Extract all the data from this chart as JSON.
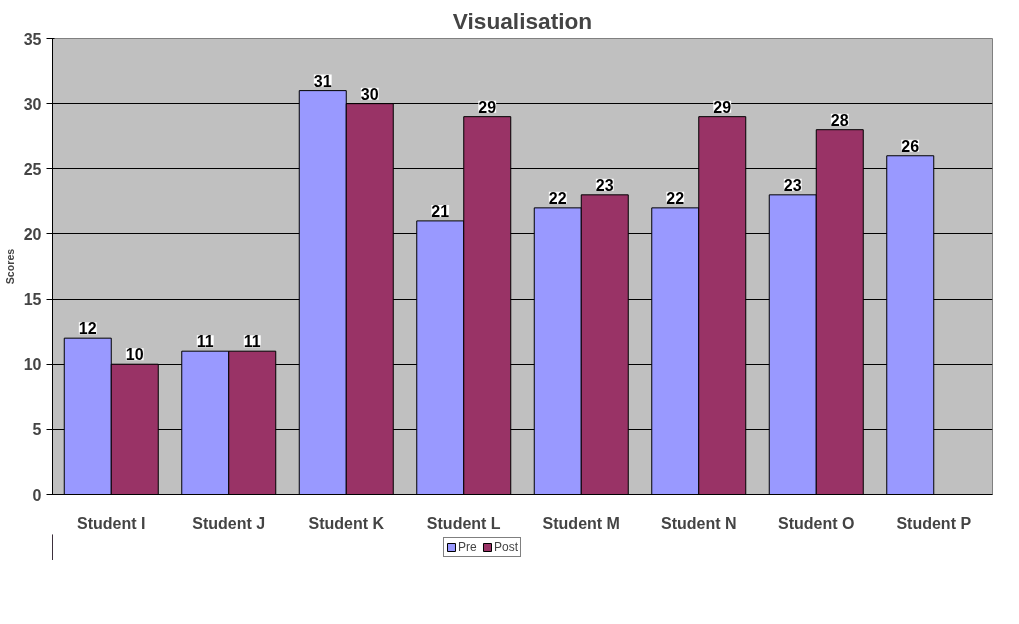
{
  "chart_data": {
    "type": "bar",
    "title": "Visualisation",
    "ylabel": "Scores",
    "categories": [
      "Student I",
      "Student J",
      "Student K",
      "Student L",
      "Student M",
      "Student N",
      "Student O",
      "Student P"
    ],
    "series": [
      {
        "name": "Pre",
        "color": "#9999ff",
        "values": [
          12,
          11,
          31,
          21,
          22,
          22,
          23,
          26
        ]
      },
      {
        "name": "Post",
        "color": "#993366",
        "values": [
          10,
          11,
          30,
          29,
          23,
          29,
          28,
          null
        ]
      }
    ],
    "ylim": [
      0,
      35
    ],
    "yticks": [
      0,
      5,
      10,
      15,
      20,
      25,
      30,
      35
    ],
    "grid": "y",
    "legend": "bottom",
    "data_labels": true
  }
}
